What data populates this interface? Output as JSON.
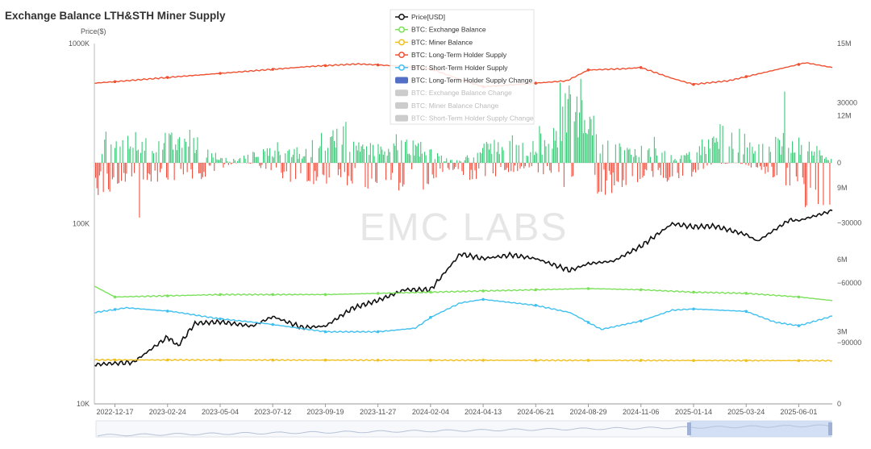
{
  "chart_data": {
    "type": "line",
    "title": "Exchange Balance LTH&STH Miner Supply",
    "ylabel": "Price($)",
    "watermark": "EMC LABS",
    "x_ticks": [
      "2022-12-17",
      "2023-02-24",
      "2023-05-04",
      "2023-07-12",
      "2023-09-19",
      "2023-11-27",
      "2024-02-04",
      "2024-04-13",
      "2024-06-21",
      "2024-08-29",
      "2024-11-06",
      "2025-01-14",
      "2025-03-24",
      "2025-06-01"
    ],
    "y_left_ticks": [
      "1000K",
      "100K",
      "10K"
    ],
    "y_right_change_ticks": [
      "30000",
      "0",
      "−30000",
      "−60000",
      "−90000"
    ],
    "y_right_supply_ticks": [
      "12M",
      "9M",
      "6M",
      "3M"
    ],
    "y_right_top_label": "15M",
    "y_right_bottom_label": "0",
    "legend": [
      {
        "name": "Price[USD]",
        "color": "#111111",
        "kind": "line",
        "active": true
      },
      {
        "name": "BTC: Exchange Balance",
        "color": "#7be05a",
        "kind": "line",
        "active": true
      },
      {
        "name": "BTC: Miner Balance",
        "color": "#f0c020",
        "kind": "line",
        "active": true
      },
      {
        "name": "BTC: Long-Term Holder Supply",
        "color": "#f05030",
        "kind": "line",
        "active": true
      },
      {
        "name": "BTC: Short-Term Holder Supply",
        "color": "#40c0f0",
        "kind": "line",
        "active": true
      },
      {
        "name": "BTC: Long-Term Holder Supply Change",
        "color": "#5470c6",
        "kind": "bar",
        "active": true
      },
      {
        "name": "BTC: Exchange Balance Change",
        "color": "#cccccc",
        "kind": "bar",
        "active": false
      },
      {
        "name": "BTC: Miner Balance Change",
        "color": "#cccccc",
        "kind": "bar",
        "active": false
      },
      {
        "name": "BTC: Short-Term Holder Supply Change",
        "color": "#cccccc",
        "kind": "bar",
        "active": false
      }
    ],
    "log_y_left": true,
    "x_range": [
      "2022-11-20",
      "2025-07-15"
    ],
    "series": [
      {
        "name": "Price[USD]",
        "color": "#111111",
        "x": [
          "2022-11-20",
          "2022-12-17",
          "2023-01-10",
          "2023-02-24",
          "2023-03-10",
          "2023-04-01",
          "2023-05-04",
          "2023-06-15",
          "2023-07-12",
          "2023-08-20",
          "2023-09-19",
          "2023-10-25",
          "2023-11-27",
          "2024-01-01",
          "2024-02-04",
          "2024-03-14",
          "2024-04-13",
          "2024-05-20",
          "2024-06-21",
          "2024-08-05",
          "2024-08-29",
          "2024-10-01",
          "2024-11-06",
          "2024-12-17",
          "2025-01-14",
          "2025-02-10",
          "2025-03-24",
          "2025-04-08",
          "2025-05-20",
          "2025-06-01",
          "2025-07-15"
        ],
        "values": [
          16500,
          16800,
          17000,
          23500,
          21000,
          28000,
          28500,
          27000,
          30500,
          26500,
          27000,
          34000,
          37500,
          43000,
          43000,
          68000,
          64000,
          67000,
          64000,
          55000,
          60000,
          62000,
          75000,
          100000,
          96000,
          97000,
          87000,
          80000,
          105000,
          104000,
          118000
        ]
      },
      {
        "name": "BTC: Long-Term Holder Supply",
        "color": "#f05030",
        "x": [
          "2022-11-20",
          "2023-01-01",
          "2023-03-01",
          "2023-05-01",
          "2023-07-01",
          "2023-09-01",
          "2023-11-01",
          "2024-01-01",
          "2024-02-04",
          "2024-03-14",
          "2024-04-13",
          "2024-06-21",
          "2024-08-01",
          "2024-08-29",
          "2024-10-15",
          "2024-11-06",
          "2024-12-17",
          "2025-01-14",
          "2025-03-01",
          "2025-05-01",
          "2025-06-10",
          "2025-07-15"
        ],
        "values": [
          13.35,
          13.45,
          13.6,
          13.75,
          13.9,
          14.05,
          14.15,
          14.05,
          13.95,
          13.5,
          13.2,
          13.35,
          13.45,
          13.9,
          13.95,
          14.0,
          13.55,
          13.3,
          13.45,
          13.9,
          14.2,
          14.0
        ]
      },
      {
        "name": "BTC: Short-Term Holder Supply",
        "color": "#40c0f0",
        "x": [
          "2022-11-20",
          "2023-01-01",
          "2023-03-01",
          "2023-05-01",
          "2023-07-01",
          "2023-09-19",
          "2023-11-27",
          "2024-01-15",
          "2024-02-04",
          "2024-03-14",
          "2024-04-13",
          "2024-06-21",
          "2024-08-05",
          "2024-09-15",
          "2024-11-06",
          "2024-12-17",
          "2025-01-14",
          "2025-03-24",
          "2025-05-01",
          "2025-06-01",
          "2025-07-15"
        ],
        "values": [
          3.8,
          4.0,
          3.85,
          3.55,
          3.35,
          3.0,
          3.0,
          3.15,
          3.6,
          4.2,
          4.35,
          4.1,
          3.8,
          3.1,
          3.45,
          3.9,
          3.95,
          3.85,
          3.4,
          3.25,
          3.65
        ]
      },
      {
        "name": "BTC: Exchange Balance",
        "color": "#7be05a",
        "x": [
          "2022-11-20",
          "2022-12-17",
          "2023-03-01",
          "2023-05-04",
          "2023-07-12",
          "2023-09-19",
          "2023-11-27",
          "2024-02-04",
          "2024-04-13",
          "2024-06-21",
          "2024-08-29",
          "2024-11-06",
          "2025-01-14",
          "2025-03-24",
          "2025-06-01",
          "2025-07-15"
        ],
        "values": [
          4.9,
          4.45,
          4.5,
          4.55,
          4.55,
          4.55,
          4.6,
          4.65,
          4.7,
          4.75,
          4.8,
          4.75,
          4.65,
          4.6,
          4.45,
          4.3
        ]
      },
      {
        "name": "BTC: Miner Balance",
        "color": "#f0c020",
        "x": [
          "2022-11-20",
          "2025-07-15"
        ],
        "values": [
          1.83,
          1.8
        ]
      }
    ],
    "bars": {
      "name": "BTC: Long-Term Holder Supply Change",
      "pos_color": "#3cc878",
      "neg_color": "#f05040",
      "min": -92000,
      "max": 42000
    }
  }
}
